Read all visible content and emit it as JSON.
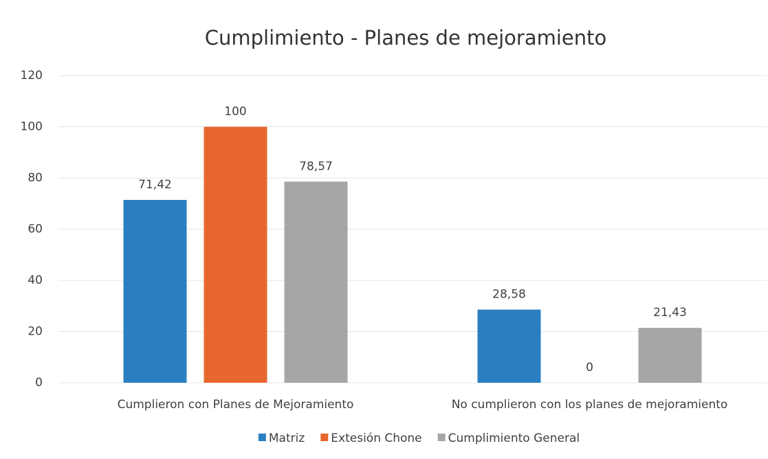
{
  "chart_data": {
    "type": "bar",
    "title": "Cumplimiento - Planes de mejoramiento",
    "categories": [
      "Cumplieron con Planes de Mejoramiento",
      "No cumplieron con los planes de mejoramiento"
    ],
    "series": [
      {
        "name": "Matriz",
        "color": "#2b7fc1",
        "values": [
          71.42,
          28.58
        ],
        "value_labels": [
          "71,42",
          "28,58"
        ]
      },
      {
        "name": "Extesión Chone",
        "color": "#e8672f",
        "values": [
          100,
          0
        ],
        "value_labels": [
          "100",
          "0"
        ]
      },
      {
        "name": "Cumplimiento General",
        "color": "#a6a6a6",
        "values": [
          78.57,
          21.43
        ],
        "value_labels": [
          "78,57",
          "21,43"
        ]
      }
    ],
    "ylim": [
      0,
      120
    ],
    "yticks": [
      0,
      20,
      40,
      60,
      80,
      100,
      120
    ],
    "grid": true,
    "legend": "bottom"
  }
}
